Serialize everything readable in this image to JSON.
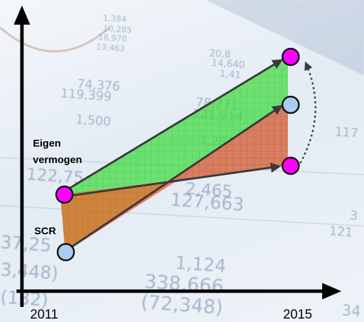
{
  "background": {
    "description": "photo of printed financial spreadsheet with pen, blurred blue-grey",
    "numbers": [
      "1,384",
      "10,285",
      "16,970",
      "13,463",
      "20,8",
      "14,640",
      "1,41",
      "74,376",
      "119,399",
      "78,271",
      "121,914",
      "1,500",
      "1,284",
      "122,75",
      "2,465",
      "127,663",
      "37,25",
      "3,448)",
      "1,124",
      "338,666",
      "(72,348)",
      "(132)",
      "34",
      "117",
      "121",
      "3"
    ]
  },
  "labels": {
    "eigen_vermogen": [
      "Eigen",
      "vermogen"
    ],
    "scr": "SCR",
    "year_start": "2011",
    "year_end": "2015"
  },
  "colors": {
    "green_area": "#3fdc3f",
    "red_area": "#ff5a5a",
    "brown_overlap": "#c8751e",
    "eigen_marker": "#ff00ff",
    "scr_marker": "#a9cdf0",
    "line": "#3a3a3a",
    "axis": "#000000"
  },
  "icons": {
    "axes": "arrow-axes",
    "markers": "circle-marker",
    "connector": "dotted-curved-arrow"
  }
}
